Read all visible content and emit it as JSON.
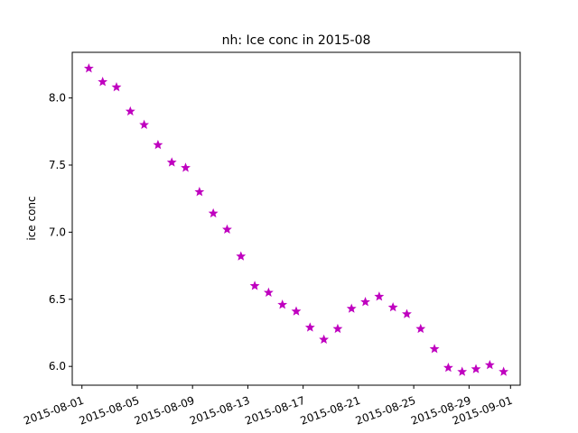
{
  "chart_data": {
    "type": "scatter",
    "title": "nh: Ice conc in 2015-08",
    "xlabel": "",
    "ylabel": "ice conc",
    "marker": "star",
    "marker_color": "#bf00bf",
    "grid": false,
    "legend": "none",
    "xlim": [
      "2015-07-31T07:12",
      "2015-09-01T16:48"
    ],
    "ylim": [
      5.86,
      8.34
    ],
    "x_ticks": [
      "2015-08-01",
      "2015-08-05",
      "2015-08-09",
      "2015-08-13",
      "2015-08-17",
      "2015-08-21",
      "2015-08-25",
      "2015-08-29",
      "2015-09-01"
    ],
    "y_ticks": [
      "6.0",
      "6.5",
      "7.0",
      "7.5",
      "8.0"
    ],
    "x": [
      "2015-08-01T12:00",
      "2015-08-02T12:00",
      "2015-08-03T12:00",
      "2015-08-04T12:00",
      "2015-08-05T12:00",
      "2015-08-06T12:00",
      "2015-08-07T12:00",
      "2015-08-08T12:00",
      "2015-08-09T12:00",
      "2015-08-10T12:00",
      "2015-08-11T12:00",
      "2015-08-12T12:00",
      "2015-08-13T12:00",
      "2015-08-14T12:00",
      "2015-08-15T12:00",
      "2015-08-16T12:00",
      "2015-08-17T12:00",
      "2015-08-18T12:00",
      "2015-08-19T12:00",
      "2015-08-20T12:00",
      "2015-08-21T12:00",
      "2015-08-22T12:00",
      "2015-08-23T12:00",
      "2015-08-24T12:00",
      "2015-08-25T12:00",
      "2015-08-26T12:00",
      "2015-08-27T12:00",
      "2015-08-28T12:00",
      "2015-08-29T12:00",
      "2015-08-30T12:00",
      "2015-08-31T12:00"
    ],
    "y": [
      8.22,
      8.12,
      8.08,
      7.9,
      7.8,
      7.65,
      7.52,
      7.48,
      7.3,
      7.14,
      7.02,
      6.82,
      6.6,
      6.55,
      6.46,
      6.41,
      6.29,
      6.2,
      6.28,
      6.43,
      6.48,
      6.52,
      6.44,
      6.39,
      6.28,
      6.13,
      5.99,
      5.96,
      5.98,
      6.01,
      5.96
    ]
  }
}
